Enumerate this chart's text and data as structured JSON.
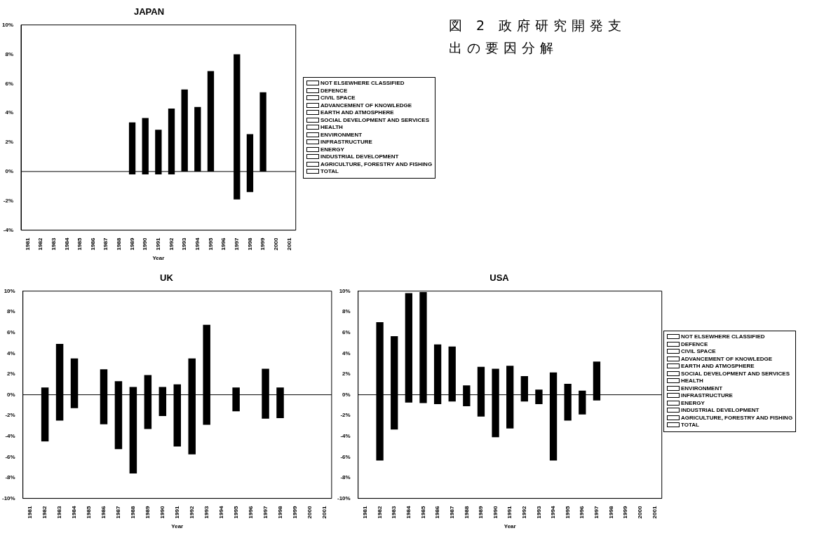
{
  "chart_data": [
    {
      "type": "other",
      "title": "図 2 政府研究開発支出の要因分解"
    },
    {
      "type": "bar",
      "title": "JAPAN",
      "xlabel": "Year",
      "categories": [
        "1981",
        "1982",
        "1983",
        "1984",
        "1985",
        "1986",
        "1987",
        "1988",
        "1989",
        "1990",
        "1991",
        "1992",
        "1993",
        "1994",
        "1995",
        "1996",
        "1997",
        "1998",
        "1999",
        "2000",
        "2001"
      ],
      "base": [
        null,
        null,
        null,
        null,
        null,
        null,
        null,
        null,
        -0.2,
        -0.2,
        -0.2,
        -0.2,
        0,
        0,
        0,
        null,
        -1.9,
        -1.4,
        0,
        null,
        null
      ],
      "values": [
        null,
        null,
        null,
        null,
        null,
        null,
        null,
        null,
        3.55,
        3.85,
        3.05,
        4.5,
        5.6,
        4.4,
        6.85,
        null,
        9.9,
        3.95,
        5.4,
        null,
        null
      ],
      "color": "#000000",
      "ylim": [
        -4,
        10
      ],
      "yticks": [
        {
          "value": -4,
          "label": "-4%"
        },
        {
          "value": -2,
          "label": "-2%"
        },
        {
          "value": 0,
          "label": "0%"
        },
        {
          "value": 2,
          "label": "2%"
        },
        {
          "value": 4,
          "label": "4%"
        },
        {
          "value": 6,
          "label": "6%"
        },
        {
          "value": 8,
          "label": "8%"
        },
        {
          "value": 10,
          "label": "10%"
        }
      ],
      "annotations": [
        "NOT ELSEWHERE CLASSIFIED",
        "DEFENCE",
        "CIVIL SPACE",
        "ADVANCEMENT OF KNOWLEDGE",
        "EARTH AND ATMOSPHERE",
        "SOCIAL DEVELOPMENT AND SERVICES",
        "HEALTH",
        "ENVIRONMENT",
        "INFRASTRUCTURE",
        "ENERGY",
        "INDUSTRIAL DEVELOPMENT",
        "AGRICULTURE, FORESTRY AND FISHING",
        "TOTAL"
      ]
    },
    {
      "type": "bar",
      "title": "UK",
      "xlabel": "Year",
      "categories": [
        "1981",
        "1982",
        "1983",
        "1984",
        "1985",
        "1986",
        "1987",
        "1988",
        "1989",
        "1990",
        "1991",
        "1992",
        "1993",
        "1994",
        "1995",
        "1996",
        "1997",
        "1998",
        "1999",
        "2000",
        "2001"
      ],
      "base": [
        null,
        -4.5,
        -2.5,
        -1.3,
        null,
        -2.85,
        -5.25,
        -7.6,
        -3.3,
        -2.05,
        -5.0,
        -5.75,
        -2.9,
        null,
        -1.6,
        null,
        -2.3,
        -2.25,
        null,
        null,
        null
      ],
      "values": [
        null,
        5.2,
        7.4,
        4.8,
        null,
        5.3,
        6.55,
        8.35,
        5.2,
        2.8,
        6.0,
        9.25,
        9.65,
        null,
        2.3,
        null,
        4.8,
        2.95,
        null,
        null,
        null
      ],
      "color": "#000000",
      "ylim": [
        -10,
        10
      ],
      "yticks": [
        {
          "value": -10,
          "label": "-10%"
        },
        {
          "value": -8,
          "label": "-8%"
        },
        {
          "value": -6,
          "label": "-6%"
        },
        {
          "value": -4,
          "label": "-4%"
        },
        {
          "value": -2,
          "label": "-2%"
        },
        {
          "value": 0,
          "label": "0%"
        },
        {
          "value": 2,
          "label": "2%"
        },
        {
          "value": 4,
          "label": "4%"
        },
        {
          "value": 6,
          "label": "6%"
        },
        {
          "value": 8,
          "label": "8%"
        },
        {
          "value": 10,
          "label": "10%"
        }
      ]
    },
    {
      "type": "bar",
      "title": "USA",
      "xlabel": "Year",
      "categories": [
        "1981",
        "1982",
        "1983",
        "1984",
        "1985",
        "1986",
        "1987",
        "1988",
        "1989",
        "1990",
        "1991",
        "1992",
        "1993",
        "1994",
        "1995",
        "1996",
        "1997",
        "1998",
        "1999",
        "2000",
        "2001"
      ],
      "base": [
        null,
        -6.35,
        -3.35,
        -0.75,
        -0.8,
        -0.9,
        -0.65,
        -1.1,
        -2.1,
        -4.1,
        -3.25,
        -0.65,
        -0.9,
        -6.35,
        -2.5,
        -1.9,
        -0.55,
        null,
        null,
        null,
        null
      ],
      "values": [
        null,
        13.35,
        9.0,
        10.55,
        10.7,
        5.75,
        5.3,
        2.0,
        4.8,
        6.6,
        6.05,
        2.45,
        1.4,
        8.5,
        3.55,
        2.3,
        3.75,
        null,
        null,
        null,
        null
      ],
      "color": "#000000",
      "ylim": [
        -10,
        10
      ],
      "yticks": [
        {
          "value": -10,
          "label": "-10%"
        },
        {
          "value": -8,
          "label": "-8%"
        },
        {
          "value": -6,
          "label": "-6%"
        },
        {
          "value": -4,
          "label": "-4%"
        },
        {
          "value": -2,
          "label": "-2%"
        },
        {
          "value": 0,
          "label": "0%"
        },
        {
          "value": 2,
          "label": "2%"
        },
        {
          "value": 4,
          "label": "4%"
        },
        {
          "value": 6,
          "label": "6%"
        },
        {
          "value": 8,
          "label": "8%"
        },
        {
          "value": 10,
          "label": "10%"
        }
      ],
      "annotations": [
        "NOT ELSEWHERE CLASSIFIED",
        "DEFENCE",
        "CIVIL SPACE",
        "ADVANCEMENT OF KNOWLEDGE",
        "EARTH AND ATMOSPHERE",
        "SOCIAL DEVELOPMENT AND SERVICES",
        "HEALTH",
        "ENVIRONMENT",
        "INFRASTRUCTURE",
        "ENERGY",
        "INDUSTRIAL DEVELOPMENT",
        "AGRICULTURE, FORESTRY AND FISHING",
        "TOTAL"
      ]
    }
  ]
}
